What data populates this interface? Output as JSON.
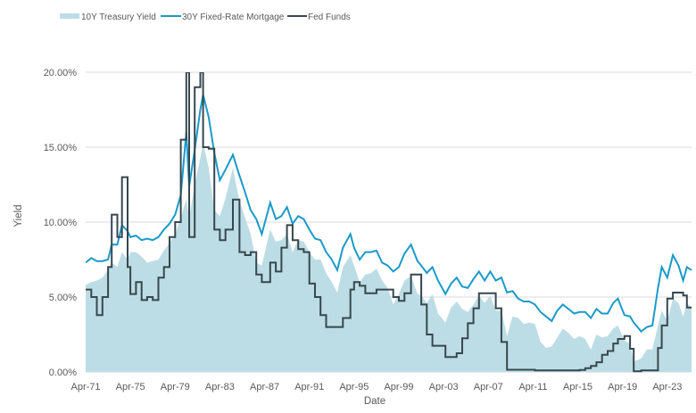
{
  "chart_data": {
    "type": "line",
    "title": "",
    "xlabel": "Date",
    "ylabel": "Yield",
    "ylim": [
      0,
      20
    ],
    "xlim": [
      "1971-04",
      "2025-06"
    ],
    "grid": "horizontal",
    "legend_placement": "top",
    "y_ticks": [
      "0.00%",
      "5.00%",
      "10.00%",
      "15.00%",
      "20.00%"
    ],
    "x_ticks": [
      "Apr-71",
      "Apr-75",
      "Apr-79",
      "Apr-83",
      "Apr-87",
      "Apr-91",
      "Apr-95",
      "Apr-99",
      "Apr-03",
      "Apr-07",
      "Apr-11",
      "Apr-15",
      "Apr-19",
      "Apr-23"
    ],
    "series": [
      {
        "name": "10Y Treasury Yield",
        "style": "area",
        "color": "#bcdde5"
      },
      {
        "name": "30Y Fixed-Rate Mortgage",
        "style": "line",
        "color": "#1a9ac9"
      },
      {
        "name": "Fed Funds",
        "style": "line",
        "color": "#37474f"
      }
    ],
    "columns": [
      "date",
      "10Y Treasury Yield",
      "30Y Fixed-Rate Mortgage",
      "Fed Funds"
    ],
    "rows": [
      [
        "1971-04",
        5.8,
        7.3,
        5.5
      ],
      [
        "1971-10",
        6.0,
        7.6,
        5.0
      ],
      [
        "1972-04",
        6.1,
        7.4,
        3.8
      ],
      [
        "1972-10",
        6.3,
        7.4,
        5.0
      ],
      [
        "1973-04",
        6.8,
        7.5,
        7.0
      ],
      [
        "1973-08",
        7.3,
        8.5,
        10.5
      ],
      [
        "1974-02",
        7.0,
        8.5,
        9.0
      ],
      [
        "1974-07",
        8.0,
        9.8,
        13.0
      ],
      [
        "1975-01",
        7.5,
        9.4,
        7.0
      ],
      [
        "1975-04",
        8.0,
        9.0,
        5.2
      ],
      [
        "1975-10",
        8.0,
        9.1,
        6.0
      ],
      [
        "1976-04",
        7.7,
        8.8,
        4.8
      ],
      [
        "1976-10",
        7.3,
        8.9,
        5.0
      ],
      [
        "1977-04",
        7.4,
        8.8,
        4.8
      ],
      [
        "1977-10",
        7.5,
        9.0,
        6.3
      ],
      [
        "1978-04",
        8.1,
        9.5,
        7.0
      ],
      [
        "1978-10",
        8.6,
        9.9,
        9.0
      ],
      [
        "1979-04",
        9.2,
        10.5,
        10.0
      ],
      [
        "1979-10",
        10.3,
        11.8,
        15.5
      ],
      [
        "1980-04",
        11.5,
        16.0,
        20.0
      ],
      [
        "1980-07",
        10.3,
        12.4,
        9.0
      ],
      [
        "1981-01",
        12.5,
        14.8,
        19.0
      ],
      [
        "1981-07",
        14.3,
        17.5,
        20.0
      ],
      [
        "1981-10",
        15.3,
        18.5,
        15.0
      ],
      [
        "1982-04",
        13.6,
        17.0,
        14.9
      ],
      [
        "1982-10",
        10.8,
        14.6,
        9.5
      ],
      [
        "1983-04",
        10.4,
        12.8,
        8.8
      ],
      [
        "1983-10",
        11.6,
        13.5,
        9.5
      ],
      [
        "1984-06",
        13.6,
        14.5,
        11.5
      ],
      [
        "1985-01",
        11.4,
        13.1,
        8.0
      ],
      [
        "1985-07",
        10.3,
        12.0,
        7.8
      ],
      [
        "1986-01",
        9.2,
        10.8,
        8.0
      ],
      [
        "1986-07",
        7.3,
        10.2,
        6.5
      ],
      [
        "1987-01",
        7.1,
        9.2,
        6.0
      ],
      [
        "1987-10",
        9.5,
        11.3,
        7.3
      ],
      [
        "1988-04",
        8.7,
        10.2,
        6.7
      ],
      [
        "1988-10",
        8.8,
        10.4,
        8.3
      ],
      [
        "1989-04",
        9.2,
        11.0,
        9.8
      ],
      [
        "1989-10",
        8.0,
        9.9,
        8.8
      ],
      [
        "1990-04",
        8.8,
        10.4,
        8.2
      ],
      [
        "1990-10",
        8.7,
        10.2,
        8.0
      ],
      [
        "1991-04",
        8.0,
        9.5,
        5.9
      ],
      [
        "1991-10",
        7.5,
        8.9,
        5.0
      ],
      [
        "1992-04",
        7.5,
        8.8,
        3.8
      ],
      [
        "1992-10",
        6.6,
        8.0,
        3.0
      ],
      [
        "1993-04",
        6.0,
        7.5,
        3.0
      ],
      [
        "1993-10",
        5.3,
        6.8,
        3.0
      ],
      [
        "1994-04",
        7.0,
        8.3,
        3.6
      ],
      [
        "1994-12",
        7.8,
        9.2,
        5.5
      ],
      [
        "1995-04",
        7.1,
        8.3,
        6.0
      ],
      [
        "1995-10",
        6.0,
        7.5,
        5.75
      ],
      [
        "1996-04",
        6.5,
        8.0,
        5.25
      ],
      [
        "1996-10",
        6.6,
        8.0,
        5.25
      ],
      [
        "1997-04",
        6.9,
        8.1,
        5.5
      ],
      [
        "1997-10",
        6.1,
        7.3,
        5.5
      ],
      [
        "1998-04",
        5.6,
        7.1,
        5.5
      ],
      [
        "1998-10",
        4.5,
        6.7,
        5.0
      ],
      [
        "1999-04",
        5.2,
        7.0,
        4.75
      ],
      [
        "1999-10",
        6.1,
        7.9,
        5.25
      ],
      [
        "2000-05",
        6.4,
        8.5,
        6.5
      ],
      [
        "2000-12",
        5.2,
        7.4,
        6.5
      ],
      [
        "2001-04",
        5.1,
        7.1,
        4.5
      ],
      [
        "2001-10",
        4.6,
        6.6,
        2.5
      ],
      [
        "2002-04",
        5.2,
        7.0,
        1.75
      ],
      [
        "2002-10",
        3.9,
        6.1,
        1.75
      ],
      [
        "2003-06",
        3.3,
        5.2,
        1.0
      ],
      [
        "2003-12",
        4.3,
        5.9,
        1.0
      ],
      [
        "2004-06",
        4.7,
        6.3,
        1.25
      ],
      [
        "2004-12",
        4.2,
        5.7,
        2.25
      ],
      [
        "2005-06",
        4.0,
        5.6,
        3.25
      ],
      [
        "2005-12",
        4.5,
        6.2,
        4.25
      ],
      [
        "2006-06",
        5.1,
        6.7,
        5.25
      ],
      [
        "2006-12",
        4.6,
        6.1,
        5.25
      ],
      [
        "2007-06",
        5.1,
        6.7,
        5.25
      ],
      [
        "2007-12",
        4.1,
        6.1,
        4.25
      ],
      [
        "2008-06",
        4.1,
        6.3,
        2.0
      ],
      [
        "2008-12",
        2.4,
        5.3,
        0.15
      ],
      [
        "2009-06",
        3.7,
        5.4,
        0.15
      ],
      [
        "2009-12",
        3.6,
        4.9,
        0.15
      ],
      [
        "2010-06",
        3.2,
        4.7,
        0.15
      ],
      [
        "2010-12",
        3.3,
        4.7,
        0.15
      ],
      [
        "2011-06",
        3.2,
        4.5,
        0.1
      ],
      [
        "2011-12",
        2.0,
        4.0,
        0.1
      ],
      [
        "2012-06",
        1.6,
        3.7,
        0.1
      ],
      [
        "2012-12",
        1.7,
        3.4,
        0.1
      ],
      [
        "2013-06",
        2.3,
        4.1,
        0.1
      ],
      [
        "2013-12",
        2.9,
        4.5,
        0.1
      ],
      [
        "2014-06",
        2.6,
        4.2,
        0.1
      ],
      [
        "2014-12",
        2.2,
        3.9,
        0.1
      ],
      [
        "2015-06",
        2.4,
        4.0,
        0.13
      ],
      [
        "2015-12",
        2.2,
        4.0,
        0.25
      ],
      [
        "2016-06",
        1.5,
        3.6,
        0.4
      ],
      [
        "2016-12",
        2.5,
        4.2,
        0.65
      ],
      [
        "2017-06",
        2.3,
        3.9,
        1.15
      ],
      [
        "2017-12",
        2.4,
        3.9,
        1.4
      ],
      [
        "2018-06",
        2.9,
        4.6,
        1.9
      ],
      [
        "2018-11",
        3.1,
        4.9,
        2.2
      ],
      [
        "2019-06",
        2.1,
        3.8,
        2.4
      ],
      [
        "2019-12",
        1.9,
        3.7,
        1.55
      ],
      [
        "2020-04",
        0.7,
        3.3,
        0.05
      ],
      [
        "2020-12",
        0.9,
        2.7,
        0.1
      ],
      [
        "2021-06",
        1.5,
        3.0,
        0.1
      ],
      [
        "2021-12",
        1.5,
        3.1,
        0.1
      ],
      [
        "2022-06",
        3.1,
        5.6,
        1.6
      ],
      [
        "2022-10",
        4.1,
        7.0,
        3.1
      ],
      [
        "2023-04",
        3.4,
        6.3,
        4.9
      ],
      [
        "2023-10",
        4.9,
        7.8,
        5.3
      ],
      [
        "2024-04",
        4.6,
        7.1,
        5.3
      ],
      [
        "2024-09",
        3.7,
        6.1,
        5.1
      ],
      [
        "2025-01",
        4.6,
        7.0,
        4.3
      ],
      [
        "2025-06",
        4.3,
        6.8,
        4.3
      ]
    ]
  }
}
